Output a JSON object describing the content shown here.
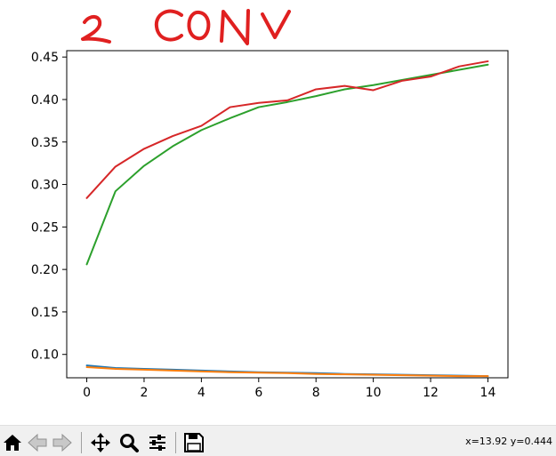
{
  "handwritten_annotation": "2 CONV",
  "colors": {
    "series_blue": "#1f77b4",
    "series_orange": "#ff7f0e",
    "series_green": "#2ca02c",
    "series_red": "#d62728",
    "annotation_red": "#e02020"
  },
  "chart_data": {
    "type": "line",
    "title": "",
    "xlabel": "",
    "ylabel": "",
    "xlim": [
      -0.7,
      14.7
    ],
    "ylim": [
      0.0725,
      0.4575
    ],
    "xticks": [
      0,
      2,
      4,
      6,
      8,
      10,
      12,
      14
    ],
    "yticks": [
      0.1,
      0.15,
      0.2,
      0.25,
      0.3,
      0.35,
      0.4,
      0.45
    ],
    "grid": false,
    "legend": "none",
    "x": [
      0,
      1,
      2,
      3,
      4,
      5,
      6,
      7,
      8,
      9,
      10,
      11,
      12,
      13,
      14
    ],
    "series": [
      {
        "color": "#1f77b4",
        "values": [
          0.087,
          0.084,
          0.083,
          0.082,
          0.081,
          0.08,
          0.079,
          0.0785,
          0.078,
          0.077,
          0.0765,
          0.076,
          0.0755,
          0.075,
          0.0745
        ]
      },
      {
        "color": "#ff7f0e",
        "values": [
          0.085,
          0.083,
          0.082,
          0.081,
          0.08,
          0.079,
          0.0785,
          0.078,
          0.077,
          0.0765,
          0.076,
          0.0755,
          0.075,
          0.0745,
          0.0745
        ]
      },
      {
        "color": "#2ca02c",
        "values": [
          0.206,
          0.292,
          0.322,
          0.345,
          0.364,
          0.378,
          0.391,
          0.397,
          0.404,
          0.412,
          0.417,
          0.423,
          0.429,
          0.435,
          0.441
        ]
      },
      {
        "color": "#d62728",
        "values": [
          0.284,
          0.321,
          0.342,
          0.357,
          0.369,
          0.391,
          0.396,
          0.399,
          0.412,
          0.416,
          0.411,
          0.422,
          0.427,
          0.439,
          0.445
        ]
      }
    ]
  },
  "toolbar": {
    "buttons": [
      {
        "name": "home-button",
        "icon": "home-icon"
      },
      {
        "name": "back-button",
        "icon": "arrow-left-icon"
      },
      {
        "name": "forward-button",
        "icon": "arrow-right-icon"
      },
      {
        "name": "pan-button",
        "icon": "move-icon"
      },
      {
        "name": "zoom-button",
        "icon": "magnifier-icon"
      },
      {
        "name": "configure-subplots-button",
        "icon": "sliders-icon"
      },
      {
        "name": "save-button",
        "icon": "floppy-disk-icon"
      }
    ],
    "coordinates": "x=13.92 y=0.444"
  }
}
